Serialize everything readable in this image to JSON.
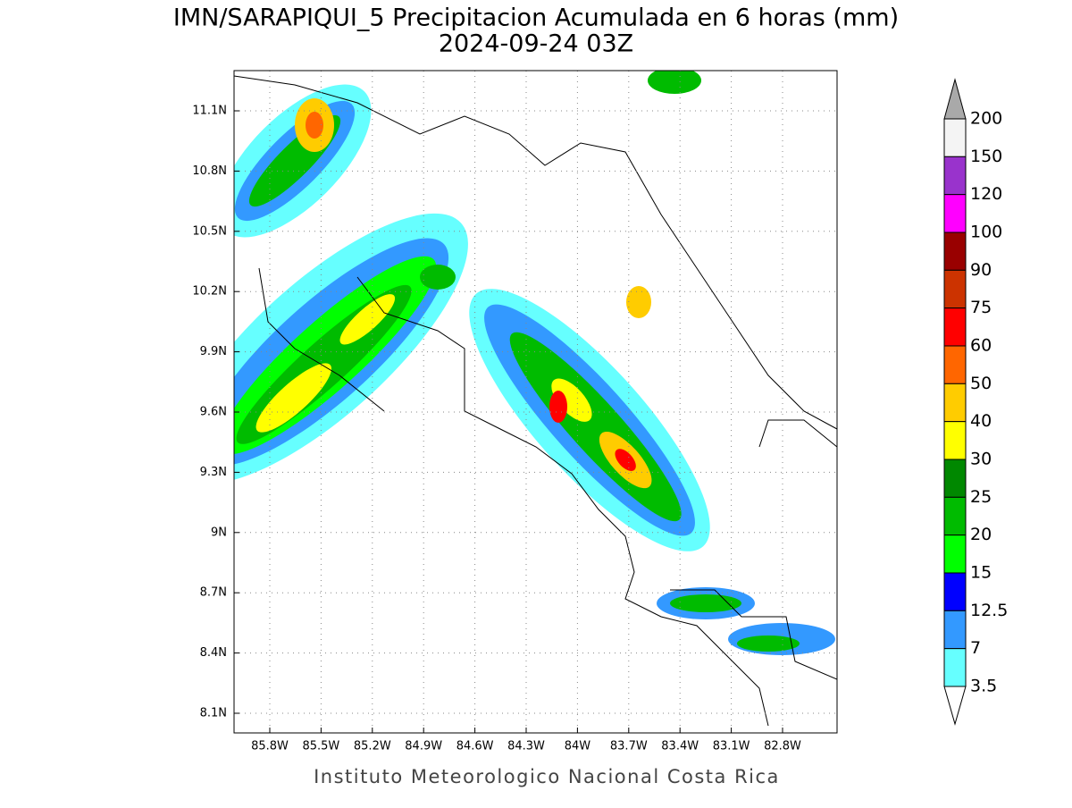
{
  "title": "IMN/SARAPIQUI_5 Precipitacion Acumulada en 6 horas (mm)",
  "subtitle": "2024-09-24 03Z",
  "lat_labels": [
    "11.1N",
    "10.8N",
    "10.5N",
    "10.2N",
    "9.9N",
    "9.6N",
    "9.3N",
    "9N",
    "8.7N",
    "8.4N",
    "8.1N"
  ],
  "lon_labels": [
    "85.8W",
    "85.5W",
    "85.2W",
    "84.9W",
    "84.6W",
    "84.3W",
    "84W",
    "83.7W",
    "83.4W",
    "83.1W",
    "82.8W"
  ],
  "colorbar": {
    "levels": [
      200,
      150,
      120,
      100,
      90,
      75,
      60,
      50,
      40,
      30,
      25,
      20,
      15,
      12.5,
      7,
      3.5
    ],
    "colors": [
      "#a9a9a9",
      "#f4f4f4",
      "#9933cc",
      "#ff00ff",
      "#990000",
      "#cc3300",
      "#ff0000",
      "#ff6600",
      "#ffcc00",
      "#ffff00",
      "#008800",
      "#00bb00",
      "#00ff00",
      "#0000ff",
      "#3399ff",
      "#66ffff",
      "#ffffff"
    ]
  },
  "footer": "Instituto Meteorologico Nacional Costa Rica"
}
